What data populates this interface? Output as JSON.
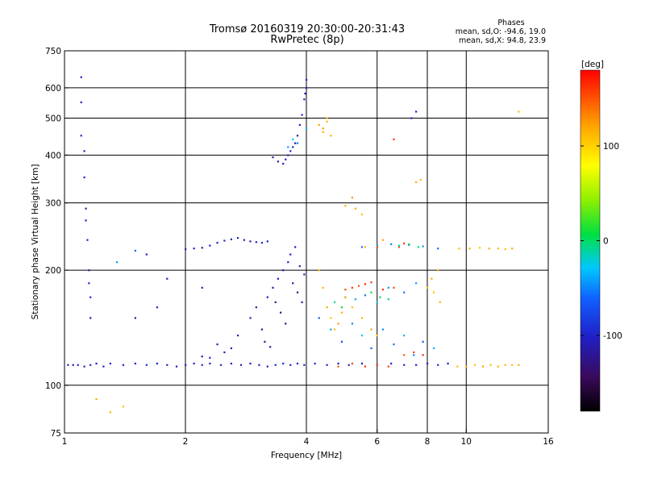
{
  "chart_data": {
    "type": "scatter",
    "title": "Tromsø 20160319 20:30:00-20:31:43",
    "subtitle": "RwPretec (8p)",
    "xlabel": "Frequency [MHz]",
    "ylabel": "Stationary phase Virtual Height [km]",
    "x_scale": "log",
    "y_scale": "log",
    "xlim": [
      1,
      16
    ],
    "ylim": [
      75,
      750
    ],
    "x_ticks": [
      1,
      2,
      4,
      6,
      8,
      10,
      16
    ],
    "x_tick_labels": [
      "1",
      "2",
      "4",
      "6",
      "8",
      "10",
      "16"
    ],
    "y_ticks": [
      75,
      100,
      200,
      300,
      400,
      500,
      600,
      750
    ],
    "y_tick_labels": [
      "75",
      "100",
      "200",
      "300",
      "400",
      "500",
      "600",
      "750"
    ],
    "grid": true,
    "grid_x": [
      2,
      4,
      6,
      8,
      10
    ],
    "grid_y": [
      100,
      200,
      300,
      400,
      500,
      600
    ],
    "info": {
      "heading": "Phases",
      "line1": "mean, sd,O: -94.6, 19.0",
      "line2": "mean, sd,X:  94.8, 23.9"
    },
    "colorbar": {
      "label": "[deg]",
      "range": [
        -180,
        180
      ],
      "ticks": [
        100,
        0,
        -100
      ],
      "tick_labels": [
        "100",
        "0",
        "-100"
      ]
    },
    "series": [
      {
        "points": [
          [
            1.02,
            113,
            -105
          ],
          [
            1.05,
            113,
            -110
          ],
          [
            1.08,
            113,
            -100
          ],
          [
            1.12,
            112,
            -105
          ],
          [
            1.16,
            113,
            -95
          ],
          [
            1.2,
            114,
            -105
          ],
          [
            1.25,
            112,
            -100
          ],
          [
            1.3,
            114,
            -100
          ],
          [
            1.4,
            113,
            -105
          ],
          [
            1.5,
            114,
            -100
          ],
          [
            1.6,
            113,
            -95
          ],
          [
            1.7,
            114,
            -100
          ],
          [
            1.8,
            113,
            -105
          ],
          [
            1.9,
            112,
            -110
          ],
          [
            2.0,
            113,
            -100
          ],
          [
            2.1,
            114,
            -105
          ],
          [
            2.2,
            113,
            -100
          ],
          [
            2.3,
            114,
            -105
          ],
          [
            2.45,
            113,
            -95
          ],
          [
            2.6,
            114,
            -100
          ],
          [
            2.75,
            113,
            -110
          ],
          [
            2.9,
            114,
            -100
          ],
          [
            3.05,
            113,
            -105
          ],
          [
            3.2,
            112,
            -110
          ],
          [
            3.35,
            113,
            -100
          ],
          [
            3.5,
            114,
            -95
          ],
          [
            3.65,
            113,
            -105
          ],
          [
            3.8,
            114,
            -100
          ],
          [
            3.95,
            113,
            -110
          ],
          [
            4.2,
            114,
            -95
          ],
          [
            4.5,
            113,
            -100
          ],
          [
            4.8,
            114,
            -105
          ],
          [
            5.1,
            113,
            -95
          ],
          [
            5.5,
            114,
            -100
          ],
          [
            6.0,
            113,
            -105
          ],
          [
            6.5,
            114,
            -95
          ],
          [
            7.0,
            113,
            -100
          ],
          [
            7.5,
            113,
            -105
          ],
          [
            8.0,
            114,
            -100
          ],
          [
            8.5,
            113,
            -95
          ],
          [
            9.0,
            114,
            -105
          ],
          [
            1.1,
            640,
            -105
          ],
          [
            1.1,
            550,
            -100
          ],
          [
            1.1,
            450,
            -95
          ],
          [
            1.12,
            410,
            -105
          ],
          [
            1.12,
            350,
            -100
          ],
          [
            1.13,
            290,
            -110
          ],
          [
            1.13,
            270,
            -105
          ],
          [
            1.14,
            240,
            -100
          ],
          [
            1.15,
            200,
            -105
          ],
          [
            1.15,
            185,
            -95
          ],
          [
            1.16,
            170,
            -100
          ],
          [
            1.16,
            150,
            -110
          ],
          [
            2.0,
            227,
            -105
          ],
          [
            2.1,
            228,
            -100
          ],
          [
            2.2,
            229,
            -110
          ],
          [
            2.3,
            232,
            -100
          ],
          [
            2.4,
            236,
            -105
          ],
          [
            2.5,
            239,
            -95
          ],
          [
            2.6,
            241,
            -100
          ],
          [
            2.7,
            243,
            -105
          ],
          [
            2.8,
            240,
            -100
          ],
          [
            2.9,
            238,
            -110
          ],
          [
            3.0,
            237,
            -105
          ],
          [
            3.1,
            236,
            -95
          ],
          [
            3.2,
            238,
            -100
          ],
          [
            3.3,
            395,
            -115
          ],
          [
            3.4,
            385,
            -105
          ],
          [
            3.5,
            380,
            -110
          ],
          [
            3.55,
            390,
            -100
          ],
          [
            3.6,
            400,
            -105
          ],
          [
            3.65,
            410,
            -110
          ],
          [
            3.7,
            420,
            -100
          ],
          [
            3.75,
            430,
            -105
          ],
          [
            3.8,
            450,
            -100
          ],
          [
            3.85,
            480,
            -110
          ],
          [
            3.9,
            510,
            -100
          ],
          [
            3.95,
            560,
            -105
          ],
          [
            4.0,
            600,
            -100
          ],
          [
            3.97,
            580,
            -105
          ],
          [
            4.0,
            630,
            -95
          ],
          [
            2.9,
            150,
            -120
          ],
          [
            3.0,
            160,
            -115
          ],
          [
            3.1,
            140,
            -125
          ],
          [
            3.2,
            170,
            -110
          ],
          [
            3.3,
            180,
            -115
          ],
          [
            3.4,
            190,
            -105
          ],
          [
            3.5,
            200,
            -110
          ],
          [
            3.6,
            210,
            -100
          ],
          [
            3.7,
            185,
            -115
          ],
          [
            3.8,
            175,
            -120
          ],
          [
            3.9,
            165,
            -110
          ],
          [
            3.45,
            155,
            -125
          ],
          [
            3.55,
            145,
            -130
          ],
          [
            3.15,
            130,
            -120
          ],
          [
            2.7,
            135,
            -105
          ],
          [
            2.6,
            125,
            -110
          ],
          [
            2.5,
            122,
            -100
          ],
          [
            2.4,
            128,
            -105
          ],
          [
            2.3,
            118,
            -100
          ],
          [
            2.2,
            119,
            -110
          ],
          [
            3.25,
            126,
            -115
          ],
          [
            3.35,
            165,
            -120
          ],
          [
            3.65,
            220,
            -105
          ],
          [
            3.75,
            230,
            -100
          ],
          [
            3.85,
            205,
            -110
          ],
          [
            3.95,
            195,
            -100
          ],
          [
            7.3,
            500,
            -95
          ],
          [
            7.5,
            520,
            -100
          ],
          [
            1.6,
            220,
            -105
          ],
          [
            1.8,
            190,
            -95
          ],
          [
            1.7,
            160,
            -100
          ],
          [
            1.5,
            150,
            -110
          ],
          [
            2.2,
            180,
            -100
          ]
        ]
      },
      {
        "points": [
          [
            4.3,
            150,
            -60
          ],
          [
            4.6,
            140,
            -40
          ],
          [
            4.9,
            130,
            -70
          ],
          [
            5.2,
            145,
            -50
          ],
          [
            5.5,
            135,
            -30
          ],
          [
            5.8,
            125,
            -60
          ],
          [
            6.2,
            140,
            -45
          ],
          [
            6.6,
            128,
            -55
          ],
          [
            7.0,
            135,
            -35
          ],
          [
            7.4,
            120,
            -50
          ],
          [
            7.8,
            130,
            -65
          ],
          [
            8.3,
            125,
            -40
          ],
          [
            5.0,
            170,
            -50
          ],
          [
            5.3,
            168,
            -40
          ],
          [
            5.6,
            172,
            -55
          ],
          [
            6.0,
            165,
            -30
          ],
          [
            6.4,
            180,
            -45
          ],
          [
            7.0,
            175,
            -55
          ],
          [
            7.5,
            185,
            -40
          ],
          [
            5.5,
            230,
            -55
          ],
          [
            6.0,
            232,
            -40
          ],
          [
            6.5,
            234,
            -50
          ],
          [
            7.2,
            233,
            -60
          ],
          [
            7.8,
            231,
            -45
          ],
          [
            8.5,
            228,
            -55
          ],
          [
            3.6,
            420,
            -40
          ],
          [
            3.7,
            440,
            -30
          ],
          [
            3.8,
            430,
            -50
          ],
          [
            4.0,
            470,
            -35
          ],
          [
            1.5,
            225,
            -60
          ],
          [
            1.35,
            210,
            -45
          ]
        ]
      },
      {
        "points": [
          [
            4.3,
            480,
            120
          ],
          [
            4.4,
            460,
            115
          ],
          [
            4.5,
            500,
            110
          ],
          [
            4.4,
            470,
            125
          ],
          [
            4.6,
            450,
            118
          ],
          [
            4.5,
            490,
            112
          ],
          [
            4.3,
            200,
            110
          ],
          [
            4.4,
            180,
            115
          ],
          [
            4.5,
            160,
            120
          ],
          [
            4.6,
            150,
            105
          ],
          [
            4.7,
            140,
            110
          ],
          [
            4.8,
            145,
            125
          ],
          [
            4.9,
            155,
            112
          ],
          [
            5.0,
            170,
            118
          ],
          [
            5.2,
            160,
            110
          ],
          [
            5.5,
            150,
            115
          ],
          [
            5.8,
            140,
            120
          ],
          [
            6.0,
            135,
            108
          ],
          [
            7.5,
            340,
            115
          ],
          [
            7.7,
            345,
            110
          ],
          [
            5.3,
            290,
            120
          ],
          [
            5.5,
            280,
            110
          ],
          [
            5.2,
            310,
            125
          ],
          [
            5.0,
            295,
            115
          ],
          [
            8.0,
            180,
            110
          ],
          [
            8.2,
            190,
            120
          ],
          [
            8.5,
            200,
            115
          ],
          [
            8.3,
            175,
            105
          ],
          [
            8.6,
            165,
            118
          ],
          [
            9.5,
            112,
            110
          ],
          [
            10.0,
            112,
            115
          ],
          [
            10.5,
            113,
            105
          ],
          [
            11.0,
            112,
            120
          ],
          [
            11.5,
            113,
            110
          ],
          [
            12.0,
            112,
            115
          ],
          [
            12.5,
            113,
            112
          ],
          [
            13.0,
            113,
            108
          ],
          [
            13.5,
            113,
            115
          ],
          [
            9.6,
            228,
            110
          ],
          [
            10.2,
            228,
            115
          ],
          [
            10.8,
            229,
            105
          ],
          [
            11.4,
            228,
            118
          ],
          [
            12.0,
            228,
            112
          ],
          [
            12.5,
            227,
            108
          ],
          [
            13.0,
            228,
            115
          ],
          [
            13.5,
            520,
            110
          ],
          [
            5.6,
            230,
            115
          ],
          [
            6.2,
            240,
            120
          ],
          [
            1.3,
            85,
            115
          ],
          [
            1.4,
            88,
            110
          ],
          [
            1.2,
            92,
            118
          ]
        ]
      },
      {
        "points": [
          [
            5.0,
            178,
            155
          ],
          [
            5.2,
            180,
            160
          ],
          [
            5.4,
            182,
            150
          ],
          [
            5.6,
            184,
            165
          ],
          [
            5.8,
            186,
            158
          ],
          [
            6.2,
            178,
            162
          ],
          [
            6.6,
            180,
            155
          ],
          [
            4.8,
            112,
            150
          ],
          [
            5.2,
            114,
            158
          ],
          [
            5.6,
            112,
            162
          ],
          [
            6.0,
            113,
            155
          ],
          [
            6.4,
            112,
            160
          ],
          [
            7.0,
            120,
            150
          ],
          [
            7.4,
            122,
            158
          ],
          [
            7.8,
            120,
            165
          ],
          [
            6.6,
            440,
            160
          ],
          [
            6.8,
            230,
            150
          ],
          [
            7.0,
            235,
            160
          ],
          [
            6.0,
            230,
            155
          ]
        ]
      },
      {
        "points": [
          [
            6.8,
            232,
            -10
          ],
          [
            7.2,
            234,
            0
          ],
          [
            7.6,
            230,
            -5
          ],
          [
            5.8,
            175,
            10
          ],
          [
            6.1,
            170,
            0
          ],
          [
            6.4,
            168,
            -15
          ],
          [
            4.7,
            165,
            -10
          ],
          [
            4.9,
            160,
            5
          ]
        ]
      }
    ]
  }
}
